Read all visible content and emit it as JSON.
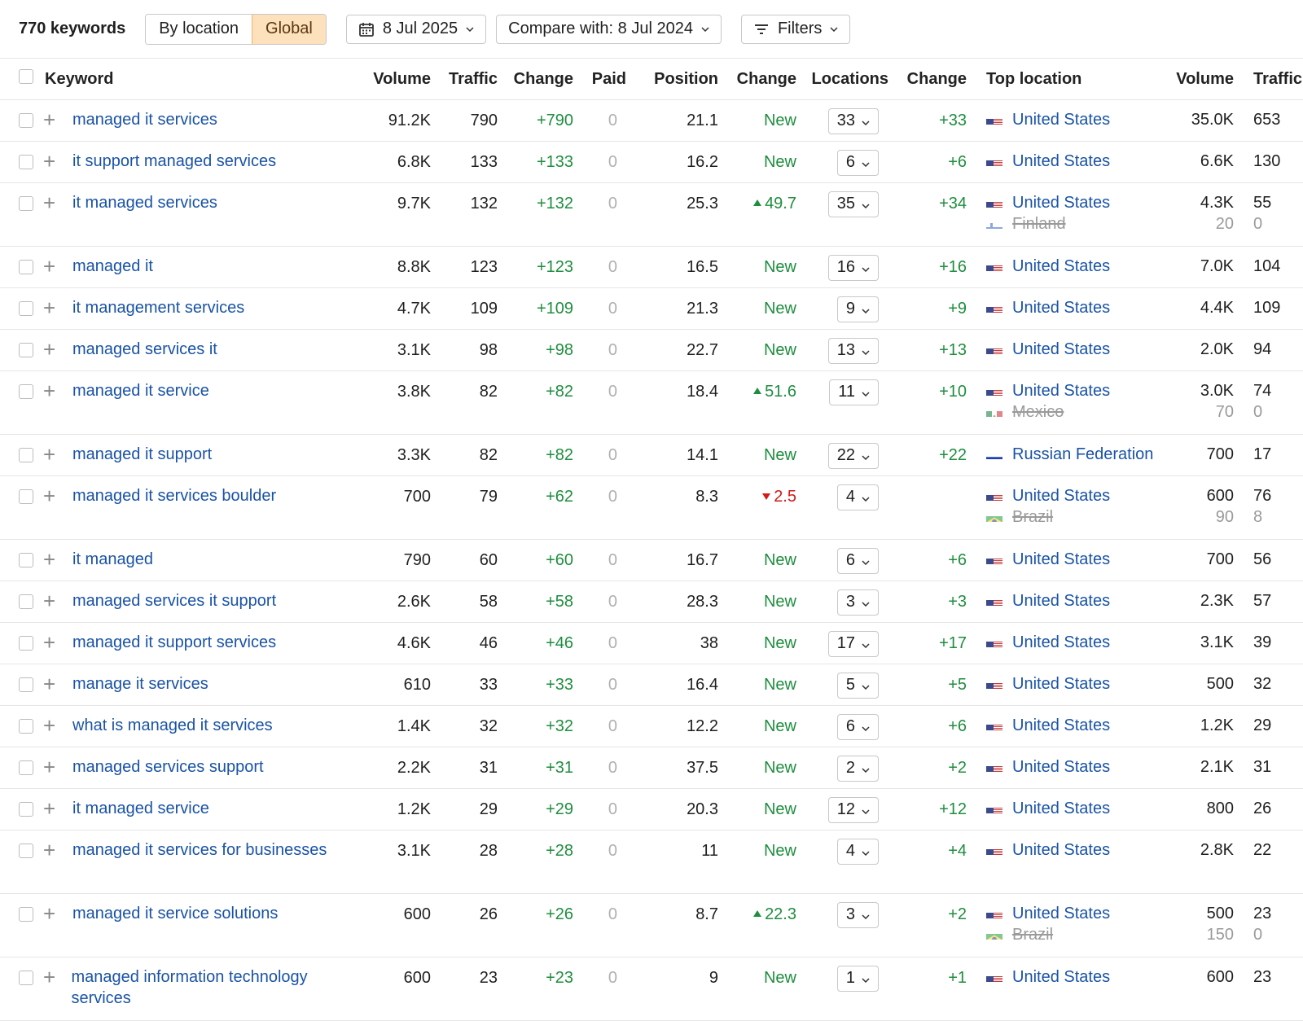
{
  "toolbar": {
    "keyword_count": "770 keywords",
    "mode_by_location": "By location",
    "mode_global": "Global",
    "date": "8 Jul 2025",
    "compare": "Compare with: 8 Jul 2024",
    "filters": "Filters"
  },
  "columns": {
    "keyword": "Keyword",
    "volume": "Volume",
    "traffic": "Traffic",
    "change": "Change",
    "paid": "Paid",
    "position": "Position",
    "pos_change": "Change",
    "locations": "Locations",
    "loc_change": "Change",
    "top_location": "Top location",
    "tl_volume": "Volume",
    "tl_traffic": "Traffic"
  },
  "colors": {
    "link": "#1a53a6",
    "positive": "#1e8e3e",
    "negative": "#d21a1a",
    "accent_active": "#fde0bc"
  },
  "rows": [
    {
      "keyword": "managed it services",
      "volume": "91.2K",
      "traffic": "790",
      "change": "+790",
      "paid": "0",
      "position": "21.1",
      "pos_change": "New",
      "pos_dir": "new",
      "locations": "33",
      "loc_change": "+33",
      "top": [
        {
          "flag": "us",
          "country": "United States",
          "volume": "35.0K",
          "traffic": "653",
          "lost": false
        }
      ]
    },
    {
      "keyword": "it support managed services",
      "volume": "6.8K",
      "traffic": "133",
      "change": "+133",
      "paid": "0",
      "position": "16.2",
      "pos_change": "New",
      "pos_dir": "new",
      "locations": "6",
      "loc_change": "+6",
      "top": [
        {
          "flag": "us",
          "country": "United States",
          "volume": "6.6K",
          "traffic": "130",
          "lost": false
        }
      ]
    },
    {
      "keyword": "it managed services",
      "volume": "9.7K",
      "traffic": "132",
      "change": "+132",
      "paid": "0",
      "position": "25.3",
      "pos_change": "49.7",
      "pos_dir": "up",
      "locations": "35",
      "loc_change": "+34",
      "top": [
        {
          "flag": "us",
          "country": "United States",
          "volume": "4.3K",
          "traffic": "55",
          "lost": false
        },
        {
          "flag": "fi",
          "country": "Finland",
          "volume": "20",
          "traffic": "0",
          "lost": true
        }
      ]
    },
    {
      "keyword": "managed it",
      "volume": "8.8K",
      "traffic": "123",
      "change": "+123",
      "paid": "0",
      "position": "16.5",
      "pos_change": "New",
      "pos_dir": "new",
      "locations": "16",
      "loc_change": "+16",
      "top": [
        {
          "flag": "us",
          "country": "United States",
          "volume": "7.0K",
          "traffic": "104",
          "lost": false
        }
      ]
    },
    {
      "keyword": "it management services",
      "volume": "4.7K",
      "traffic": "109",
      "change": "+109",
      "paid": "0",
      "position": "21.3",
      "pos_change": "New",
      "pos_dir": "new",
      "locations": "9",
      "loc_change": "+9",
      "top": [
        {
          "flag": "us",
          "country": "United States",
          "volume": "4.4K",
          "traffic": "109",
          "lost": false
        }
      ]
    },
    {
      "keyword": "managed services it",
      "volume": "3.1K",
      "traffic": "98",
      "change": "+98",
      "paid": "0",
      "position": "22.7",
      "pos_change": "New",
      "pos_dir": "new",
      "locations": "13",
      "loc_change": "+13",
      "top": [
        {
          "flag": "us",
          "country": "United States",
          "volume": "2.0K",
          "traffic": "94",
          "lost": false
        }
      ]
    },
    {
      "keyword": "managed it service",
      "volume": "3.8K",
      "traffic": "82",
      "change": "+82",
      "paid": "0",
      "position": "18.4",
      "pos_change": "51.6",
      "pos_dir": "up",
      "locations": "11",
      "loc_change": "+10",
      "top": [
        {
          "flag": "us",
          "country": "United States",
          "volume": "3.0K",
          "traffic": "74",
          "lost": false
        },
        {
          "flag": "mx",
          "country": "Mexico",
          "volume": "70",
          "traffic": "0",
          "lost": true
        }
      ]
    },
    {
      "keyword": "managed it support",
      "volume": "3.3K",
      "traffic": "82",
      "change": "+82",
      "paid": "0",
      "position": "14.1",
      "pos_change": "New",
      "pos_dir": "new",
      "locations": "22",
      "loc_change": "+22",
      "top": [
        {
          "flag": "ru",
          "country": "Russian Federation",
          "volume": "700",
          "traffic": "17",
          "lost": false
        }
      ]
    },
    {
      "keyword": "managed it services boulder",
      "volume": "700",
      "traffic": "79",
      "change": "+62",
      "paid": "0",
      "position": "8.3",
      "pos_change": "2.5",
      "pos_dir": "down",
      "locations": "4",
      "loc_change": "",
      "top": [
        {
          "flag": "us",
          "country": "United States",
          "volume": "600",
          "traffic": "76",
          "lost": false
        },
        {
          "flag": "br",
          "country": "Brazil",
          "volume": "90",
          "traffic": "8",
          "lost": true
        }
      ]
    },
    {
      "keyword": "it managed",
      "volume": "790",
      "traffic": "60",
      "change": "+60",
      "paid": "0",
      "position": "16.7",
      "pos_change": "New",
      "pos_dir": "new",
      "locations": "6",
      "loc_change": "+6",
      "top": [
        {
          "flag": "us",
          "country": "United States",
          "volume": "700",
          "traffic": "56",
          "lost": false
        }
      ]
    },
    {
      "keyword": "managed services it support",
      "volume": "2.6K",
      "traffic": "58",
      "change": "+58",
      "paid": "0",
      "position": "28.3",
      "pos_change": "New",
      "pos_dir": "new",
      "locations": "3",
      "loc_change": "+3",
      "top": [
        {
          "flag": "us",
          "country": "United States",
          "volume": "2.3K",
          "traffic": "57",
          "lost": false
        }
      ]
    },
    {
      "keyword": "managed it support services",
      "volume": "4.6K",
      "traffic": "46",
      "change": "+46",
      "paid": "0",
      "position": "38",
      "pos_change": "New",
      "pos_dir": "new",
      "locations": "17",
      "loc_change": "+17",
      "top": [
        {
          "flag": "us",
          "country": "United States",
          "volume": "3.1K",
          "traffic": "39",
          "lost": false
        }
      ]
    },
    {
      "keyword": "manage it services",
      "volume": "610",
      "traffic": "33",
      "change": "+33",
      "paid": "0",
      "position": "16.4",
      "pos_change": "New",
      "pos_dir": "new",
      "locations": "5",
      "loc_change": "+5",
      "top": [
        {
          "flag": "us",
          "country": "United States",
          "volume": "500",
          "traffic": "32",
          "lost": false
        }
      ]
    },
    {
      "keyword": "what is managed it services",
      "volume": "1.4K",
      "traffic": "32",
      "change": "+32",
      "paid": "0",
      "position": "12.2",
      "pos_change": "New",
      "pos_dir": "new",
      "locations": "6",
      "loc_change": "+6",
      "top": [
        {
          "flag": "us",
          "country": "United States",
          "volume": "1.2K",
          "traffic": "29",
          "lost": false
        }
      ]
    },
    {
      "keyword": "managed services support",
      "volume": "2.2K",
      "traffic": "31",
      "change": "+31",
      "paid": "0",
      "position": "37.5",
      "pos_change": "New",
      "pos_dir": "new",
      "locations": "2",
      "loc_change": "+2",
      "top": [
        {
          "flag": "us",
          "country": "United States",
          "volume": "2.1K",
          "traffic": "31",
          "lost": false
        }
      ]
    },
    {
      "keyword": "it managed service",
      "volume": "1.2K",
      "traffic": "29",
      "change": "+29",
      "paid": "0",
      "position": "20.3",
      "pos_change": "New",
      "pos_dir": "new",
      "locations": "12",
      "loc_change": "+12",
      "top": [
        {
          "flag": "us",
          "country": "United States",
          "volume": "800",
          "traffic": "26",
          "lost": false
        }
      ]
    },
    {
      "keyword": "managed it services for businesses",
      "volume": "3.1K",
      "traffic": "28",
      "change": "+28",
      "paid": "0",
      "position": "11",
      "pos_change": "New",
      "pos_dir": "new",
      "locations": "4",
      "loc_change": "+4",
      "top": [
        {
          "flag": "us",
          "country": "United States",
          "volume": "2.8K",
          "traffic": "22",
          "lost": false
        }
      ]
    },
    {
      "keyword": "managed it service solutions",
      "volume": "600",
      "traffic": "26",
      "change": "+26",
      "paid": "0",
      "position": "8.7",
      "pos_change": "22.3",
      "pos_dir": "up",
      "locations": "3",
      "loc_change": "+2",
      "top": [
        {
          "flag": "us",
          "country": "United States",
          "volume": "500",
          "traffic": "23",
          "lost": false
        },
        {
          "flag": "br",
          "country": "Brazil",
          "volume": "150",
          "traffic": "0",
          "lost": true
        }
      ]
    },
    {
      "keyword": "managed information technology services",
      "volume": "600",
      "traffic": "23",
      "change": "+23",
      "paid": "0",
      "position": "9",
      "pos_change": "New",
      "pos_dir": "new",
      "locations": "1",
      "loc_change": "+1",
      "top": [
        {
          "flag": "us",
          "country": "United States",
          "volume": "600",
          "traffic": "23",
          "lost": false
        }
      ]
    }
  ]
}
